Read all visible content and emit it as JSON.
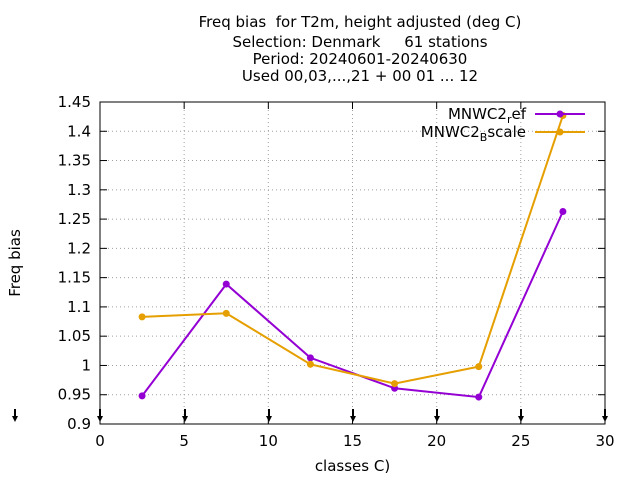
{
  "chart_data": {
    "type": "line",
    "title_lines": [
      "Freq bias  for T2m, height adjusted (deg C)",
      "Selection: Denmark     61 stations",
      "Period: 20240601-20240630",
      "Used 00,03,...,21 + 00 01 ... 12"
    ],
    "xlabel": "classes C)",
    "ylabel": "Freq bias",
    "xlim": [
      0,
      30
    ],
    "ylim": [
      0.9,
      1.45
    ],
    "x_ticks": [
      "0",
      "5",
      "10",
      "15",
      "20",
      "25",
      "30"
    ],
    "y_ticks": [
      "0.9",
      "0.95",
      "1",
      "1.05",
      "1.1",
      "1.15",
      "1.2",
      "1.25",
      "1.3",
      "1.35",
      "1.4",
      "1.45"
    ],
    "grid": true,
    "legend_position": "top-right",
    "series": [
      {
        "name_base": "MNWC2",
        "name_sub": "r",
        "name_rest": "ef",
        "color": "#9400d3",
        "x": [
          2.5,
          7.5,
          12.5,
          17.5,
          22.5,
          27.5
        ],
        "y": [
          0.948,
          1.139,
          1.013,
          0.961,
          0.946,
          1.263
        ]
      },
      {
        "name_base": "MNWC2",
        "name_sub": "B",
        "name_rest": "scale",
        "color": "#e69f00",
        "x": [
          2.5,
          7.5,
          12.5,
          17.5,
          22.5,
          27.5
        ],
        "y": [
          1.083,
          1.089,
          1.002,
          0.969,
          0.998,
          1.427
        ]
      }
    ]
  }
}
